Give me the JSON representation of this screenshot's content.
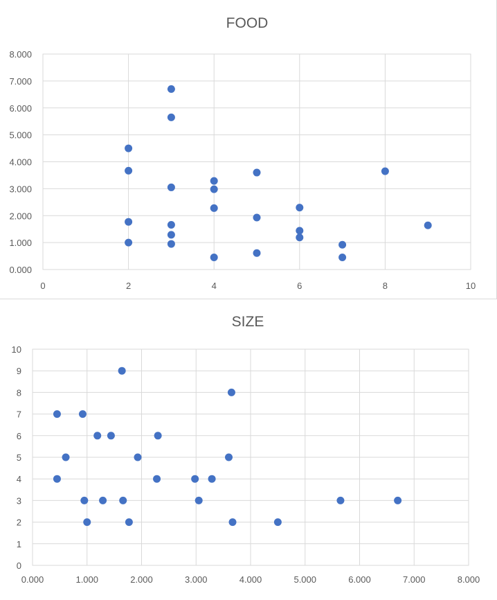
{
  "chart_data": [
    {
      "id": "food",
      "type": "scatter",
      "title": "FOOD",
      "xlabel": "",
      "ylabel": "",
      "xlim": [
        0,
        10
      ],
      "ylim": [
        0,
        8
      ],
      "xticks": [
        0,
        2,
        4,
        6,
        8,
        10
      ],
      "yticks": [
        0,
        1,
        2,
        3,
        4,
        5,
        6,
        7,
        8
      ],
      "xtick_labels": [
        "0",
        "2",
        "4",
        "6",
        "8",
        "10"
      ],
      "ytick_labels": [
        "0.000",
        "1.000",
        "2.000",
        "3.000",
        "4.000",
        "5.000",
        "6.000",
        "7.000",
        "8.000"
      ],
      "grid": true,
      "color": "#4472c4",
      "series": [
        {
          "name": "FOOD",
          "points": [
            [
              2,
              4.5
            ],
            [
              2,
              3.67
            ],
            [
              2,
              1.77
            ],
            [
              2,
              1.0
            ],
            [
              3,
              6.7
            ],
            [
              3,
              5.65
            ],
            [
              3,
              3.05
            ],
            [
              3,
              1.66
            ],
            [
              3,
              1.29
            ],
            [
              3,
              0.95
            ],
            [
              4,
              3.29
            ],
            [
              4,
              2.98
            ],
            [
              4,
              2.28
            ],
            [
              4,
              0.45
            ],
            [
              5,
              3.6
            ],
            [
              5,
              1.93
            ],
            [
              5,
              0.61
            ],
            [
              6,
              2.3
            ],
            [
              6,
              1.44
            ],
            [
              6,
              1.19
            ],
            [
              7,
              0.92
            ],
            [
              7,
              0.45
            ],
            [
              8,
              3.65
            ],
            [
              9,
              1.64
            ]
          ]
        }
      ]
    },
    {
      "id": "size",
      "type": "scatter",
      "title": "SIZE",
      "xlabel": "",
      "ylabel": "",
      "xlim": [
        0,
        8
      ],
      "ylim": [
        0,
        10
      ],
      "xticks": [
        0,
        1,
        2,
        3,
        4,
        5,
        6,
        7,
        8
      ],
      "yticks": [
        0,
        1,
        2,
        3,
        4,
        5,
        6,
        7,
        8,
        9,
        10
      ],
      "xtick_labels": [
        "0.000",
        "1.000",
        "2.000",
        "3.000",
        "4.000",
        "5.000",
        "6.000",
        "7.000",
        "8.000"
      ],
      "ytick_labels": [
        "0",
        "1",
        "2",
        "3",
        "4",
        "5",
        "6",
        "7",
        "8",
        "9",
        "10"
      ],
      "grid": true,
      "color": "#4472c4",
      "series": [
        {
          "name": "SIZE",
          "points": [
            [
              1.64,
              9
            ],
            [
              3.65,
              8
            ],
            [
              0.45,
              7
            ],
            [
              0.92,
              7
            ],
            [
              1.19,
              6
            ],
            [
              1.44,
              6
            ],
            [
              2.3,
              6
            ],
            [
              0.61,
              5
            ],
            [
              1.93,
              5
            ],
            [
              3.6,
              5
            ],
            [
              0.45,
              4
            ],
            [
              2.28,
              4
            ],
            [
              2.98,
              4
            ],
            [
              3.29,
              4
            ],
            [
              0.95,
              3
            ],
            [
              1.29,
              3
            ],
            [
              1.66,
              3
            ],
            [
              3.05,
              3
            ],
            [
              5.65,
              3
            ],
            [
              6.7,
              3
            ],
            [
              1.0,
              2
            ],
            [
              1.77,
              2
            ],
            [
              3.67,
              2
            ],
            [
              4.5,
              2
            ]
          ]
        }
      ]
    }
  ]
}
